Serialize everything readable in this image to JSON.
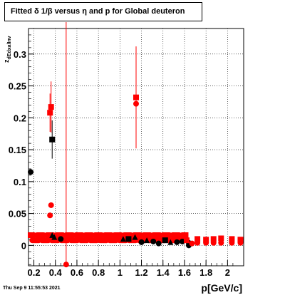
{
  "chart_data": {
    "type": "scatter",
    "title": "Fitted δ 1/β versus η and p for Global deuteron",
    "xlabel": "p[GeV/c]",
    "ylabel": "z",
    "ylabel_sub": "dEdxalInv",
    "xlim": [
      0.15,
      2.15
    ],
    "ylim": [
      -0.032,
      0.34
    ],
    "x_ticks": [
      0.2,
      0.4,
      0.6,
      0.8,
      1.0,
      1.2,
      1.4,
      1.6,
      1.8,
      2.0
    ],
    "x_tick_labels": [
      "0.2",
      "0.4",
      "0.6",
      "0.8",
      "1",
      "1.2",
      "1.4",
      "1.6",
      "1.8",
      "2"
    ],
    "y_ticks": [
      0,
      0.05,
      0.1,
      0.15,
      0.2,
      0.25,
      0.3
    ],
    "y_tick_labels": [
      "0",
      "0.05",
      "0.1",
      "0.15",
      "0.2",
      "0.25",
      "0.3"
    ],
    "grid": true,
    "series": [
      {
        "color": "#000000",
        "points": [
          {
            "x": 0.17,
            "y": 0.115,
            "marker": "circle"
          },
          {
            "x": 0.37,
            "y": 0.166,
            "err": 0.03,
            "marker": "square"
          },
          {
            "x": 0.37,
            "y": 0.015,
            "marker": "triangle"
          },
          {
            "x": 0.39,
            "y": 0.012,
            "marker": "triangle"
          },
          {
            "x": 0.45,
            "y": 0.01,
            "marker": "circle"
          },
          {
            "x": 1.03,
            "y": 0.009,
            "marker": "triangle"
          },
          {
            "x": 1.08,
            "y": 0.01,
            "marker": "square"
          },
          {
            "x": 1.14,
            "y": 0.012,
            "marker": "triangle"
          },
          {
            "x": 1.2,
            "y": 0.005,
            "marker": "circle"
          },
          {
            "x": 1.25,
            "y": 0.007,
            "marker": "triangle"
          },
          {
            "x": 1.31,
            "y": 0.006,
            "marker": "circle"
          },
          {
            "x": 1.36,
            "y": 0.003,
            "marker": "circle"
          },
          {
            "x": 1.42,
            "y": 0.008,
            "marker": "square"
          },
          {
            "x": 1.47,
            "y": 0.004,
            "marker": "triangle"
          },
          {
            "x": 1.53,
            "y": 0.005,
            "marker": "circle"
          },
          {
            "x": 1.58,
            "y": 0.006,
            "marker": "circle"
          },
          {
            "x": 1.64,
            "y": 0.004,
            "marker": "circle"
          },
          {
            "x": 1.64,
            "y": 0.0,
            "marker": "circle"
          }
        ]
      },
      {
        "color": "#ff0000",
        "points": [
          {
            "x": 0.35,
            "y": 0.208,
            "err": 0.03,
            "marker": "square"
          },
          {
            "x": 0.36,
            "y": 0.217,
            "err": 0.04,
            "marker": "square"
          },
          {
            "x": 0.35,
            "y": 0.047,
            "marker": "circle"
          },
          {
            "x": 0.36,
            "y": 0.063,
            "marker": "circle"
          },
          {
            "x": 0.5,
            "y": -0.03,
            "err_up": 0.38,
            "marker": "circle"
          },
          {
            "x": 1.15,
            "y": 0.232,
            "err": 0.08,
            "marker": "square"
          },
          {
            "x": 1.15,
            "y": 0.222,
            "marker": "circle"
          },
          {
            "x": 1.62,
            "y": 0.008,
            "marker": "square"
          },
          {
            "x": 1.67,
            "y": 0.003,
            "marker": "circle"
          },
          {
            "x": 1.72,
            "y": 0.01,
            "marker": "square"
          },
          {
            "x": 1.72,
            "y": 0.004,
            "marker": "circle"
          },
          {
            "x": 1.8,
            "y": 0.009,
            "marker": "square"
          },
          {
            "x": 1.8,
            "y": 0.004,
            "marker": "circle"
          },
          {
            "x": 1.87,
            "y": 0.01,
            "marker": "square"
          },
          {
            "x": 1.87,
            "y": 0.004,
            "marker": "circle"
          },
          {
            "x": 1.94,
            "y": 0.011,
            "marker": "square"
          },
          {
            "x": 1.94,
            "y": 0.004,
            "marker": "circle"
          },
          {
            "x": 2.04,
            "y": 0.01,
            "marker": "square"
          },
          {
            "x": 2.04,
            "y": 0.004,
            "marker": "circle"
          },
          {
            "x": 2.12,
            "y": 0.009,
            "marker": "square"
          },
          {
            "x": 2.12,
            "y": 0.004,
            "marker": "circle"
          }
        ]
      }
    ],
    "dense_band": {
      "color": "#ff0000",
      "x_start": 0.17,
      "x_end": 1.62,
      "step": 0.015,
      "y_low": 0.008,
      "y_high": 0.016
    }
  },
  "footer": "Thu Sep  9 11:55:53 2021"
}
